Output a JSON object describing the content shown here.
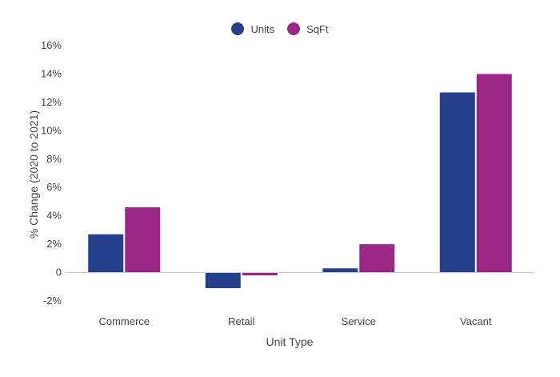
{
  "chart_data": {
    "type": "bar",
    "title": "",
    "xlabel": "Unit Type",
    "ylabel": "% Change (2020 to 2021)",
    "categories": [
      "Commerce",
      "Retail",
      "Service",
      "Vacant"
    ],
    "series": [
      {
        "name": "Units",
        "color": "#26408b",
        "values": [
          2.7,
          -1.1,
          0.3,
          12.7
        ]
      },
      {
        "name": "SqFt",
        "color": "#9b2685",
        "values": [
          4.6,
          -0.2,
          2.0,
          14.0
        ]
      }
    ],
    "ylim": [
      -2,
      16
    ],
    "yticks": [
      16,
      14,
      12,
      10,
      8,
      6,
      4,
      2,
      0,
      -2
    ],
    "ytick_labels": [
      "16%",
      "14%",
      "12%",
      "10%",
      "8%",
      "6%",
      "4%",
      "2%",
      "0",
      "-2%"
    ],
    "grid": false,
    "legend_position": "top-center"
  }
}
